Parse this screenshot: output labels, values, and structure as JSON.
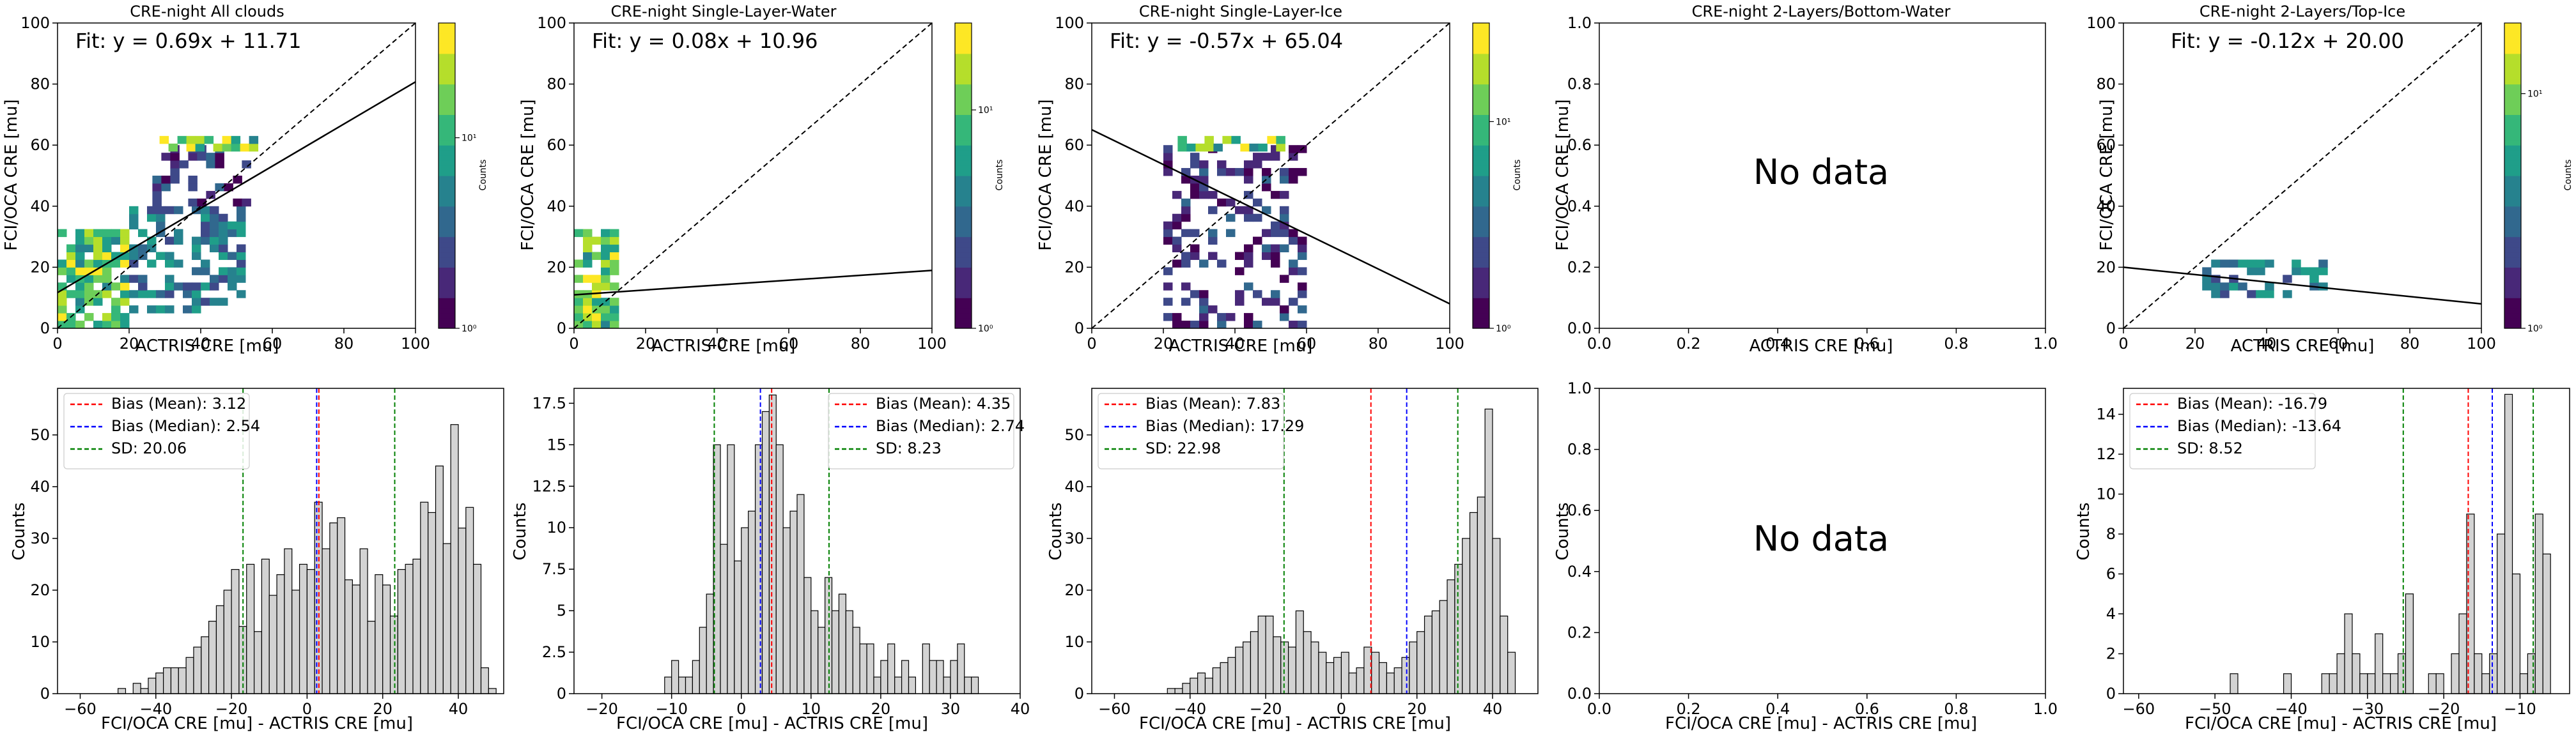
{
  "figure": {
    "panels": [
      {
        "id": "p1",
        "title": "CRE-night All clouds",
        "fit_label": "Fit: y = 0.69x + 11.71",
        "xlabel": "ACTRIS CRE [mu]",
        "ylabel": "FCI/OCA CRE [mu]",
        "colorbar_label": "Counts"
      },
      {
        "id": "p2",
        "title": "CRE-night Single-Layer-Water",
        "fit_label": "Fit: y = 0.08x + 10.96",
        "xlabel": "ACTRIS CRE [mu]",
        "ylabel": "FCI/OCA CRE [mu]",
        "colorbar_label": "Counts"
      },
      {
        "id": "p3",
        "title": "CRE-night Single-Layer-Ice",
        "fit_label": "Fit: y = -0.57x + 65.04",
        "xlabel": "ACTRIS CRE [mu]",
        "ylabel": "FCI/OCA CRE [mu]",
        "colorbar_label": "Counts"
      },
      {
        "id": "p4",
        "title": "CRE-night 2-Layers/Bottom-Water",
        "no_data_label": "No data",
        "xlabel": "ACTRIS CRE [mu]",
        "ylabel": "FCI/OCA CRE [mu]"
      },
      {
        "id": "p5",
        "title": "CRE-night 2-Layers/Top-Ice",
        "fit_label": "Fit: y = -0.12x + 20.00",
        "xlabel": "ACTRIS CRE [mu]",
        "ylabel": "FCI/OCA CRE [mu]",
        "colorbar_label": "Counts"
      },
      {
        "id": "h1",
        "xlabel": "FCI/OCA CRE [mu] - ACTRIS CRE [mu]",
        "ylabel": "Counts"
      },
      {
        "id": "h2",
        "xlabel": "FCI/OCA CRE [mu] - ACTRIS CRE [mu]",
        "ylabel": "Counts"
      },
      {
        "id": "h3",
        "xlabel": "FCI/OCA CRE [mu] - ACTRIS CRE [mu]",
        "ylabel": "Counts"
      },
      {
        "id": "h4",
        "xlabel": "FCI/OCA CRE [mu] - ACTRIS CRE [mu]",
        "ylabel": "Counts",
        "no_data_label": "No data"
      },
      {
        "id": "h5",
        "xlabel": "FCI/OCA CRE [mu] - ACTRIS CRE [mu]",
        "ylabel": "Counts"
      }
    ]
  },
  "colors": {
    "bar_fill": "#d3d3d3",
    "bar_edge": "#000000",
    "mean": "#ff0000",
    "median": "#0000ff",
    "sd": "#008000",
    "viridis": [
      "#440154",
      "#482878",
      "#3e4989",
      "#31688e",
      "#26828e",
      "#1f9e89",
      "#35b779",
      "#6ece58",
      "#b5de2b",
      "#fde725"
    ]
  },
  "chart_data": [
    {
      "type": "heatmap",
      "panel": "p1",
      "title": "CRE-night All clouds",
      "xlabel": "ACTRIS CRE [mu]",
      "ylabel": "FCI/OCA CRE [mu]",
      "xlim": [
        0,
        100
      ],
      "ylim": [
        0,
        100
      ],
      "xticks": [
        0,
        20,
        40,
        60,
        80,
        100
      ],
      "yticks": [
        0,
        20,
        40,
        60,
        80,
        100
      ],
      "fit": {
        "label": "Fit: y = 0.69x + 11.71",
        "slope": 0.69,
        "intercept": 11.71
      },
      "identity_line": true,
      "colorbar": {
        "label": "Counts",
        "scale": "log",
        "ticks": [
          {
            "value": 1,
            "label": "10⁰"
          },
          {
            "value": 10,
            "label": "10¹"
          }
        ],
        "min": 1,
        "max": 40
      },
      "cells": [
        {
          "x": [
            0,
            20
          ],
          "y": [
            0,
            32
          ],
          "density": "high"
        },
        {
          "x": [
            20,
            52
          ],
          "y": [
            5,
            40
          ],
          "density": "medium"
        },
        {
          "x": [
            24,
            54
          ],
          "y": [
            40,
            60
          ],
          "density": "low"
        },
        {
          "x": [
            26,
            54
          ],
          "y": [
            58,
            62
          ],
          "density": "high"
        }
      ]
    },
    {
      "type": "heatmap",
      "panel": "p2",
      "title": "CRE-night Single-Layer-Water",
      "xlabel": "ACTRIS CRE [mu]",
      "ylabel": "FCI/OCA CRE [mu]",
      "xlim": [
        0,
        100
      ],
      "ylim": [
        0,
        100
      ],
      "xticks": [
        0,
        20,
        40,
        60,
        80,
        100
      ],
      "yticks": [
        0,
        20,
        40,
        60,
        80,
        100
      ],
      "fit": {
        "label": "Fit: y = 0.08x + 10.96",
        "slope": 0.08,
        "intercept": 10.96
      },
      "identity_line": true,
      "colorbar": {
        "label": "Counts",
        "scale": "log",
        "ticks": [
          {
            "value": 1,
            "label": "10⁰"
          },
          {
            "value": 10,
            "label": "10¹"
          }
        ],
        "min": 1,
        "max": 25
      },
      "cells": [
        {
          "x": [
            0,
            12
          ],
          "y": [
            0,
            32
          ],
          "density": "high"
        }
      ]
    },
    {
      "type": "heatmap",
      "panel": "p3",
      "title": "CRE-night Single-Layer-Ice",
      "xlabel": "ACTRIS CRE [mu]",
      "ylabel": "FCI/OCA CRE [mu]",
      "xlim": [
        0,
        100
      ],
      "ylim": [
        0,
        100
      ],
      "xticks": [
        0,
        20,
        40,
        60,
        80,
        100
      ],
      "yticks": [
        0,
        20,
        40,
        60,
        80,
        100
      ],
      "fit": {
        "label": "Fit: y = -0.57x + 65.04",
        "slope": -0.57,
        "intercept": 65.04
      },
      "identity_line": true,
      "colorbar": {
        "label": "Counts",
        "scale": "log",
        "ticks": [
          {
            "value": 1,
            "label": "10⁰"
          },
          {
            "value": 10,
            "label": "10¹"
          }
        ],
        "min": 1,
        "max": 30
      },
      "cells": [
        {
          "x": [
            20,
            60
          ],
          "y": [
            0,
            58
          ],
          "density": "low"
        },
        {
          "x": [
            24,
            54
          ],
          "y": [
            58,
            62
          ],
          "density": "high"
        }
      ]
    },
    {
      "type": "scatter",
      "panel": "p4",
      "title": "CRE-night 2-Layers/Bottom-Water",
      "xlabel": "ACTRIS CRE [mu]",
      "ylabel": "FCI/OCA CRE [mu]",
      "xlim": [
        0,
        1
      ],
      "ylim": [
        0,
        1
      ],
      "xticks": [
        0.0,
        0.2,
        0.4,
        0.6,
        0.8,
        1.0
      ],
      "yticks": [
        0.0,
        0.2,
        0.4,
        0.6,
        0.8,
        1.0
      ],
      "annotation": "No data"
    },
    {
      "type": "heatmap",
      "panel": "p5",
      "title": "CRE-night 2-Layers/Top-Ice",
      "xlabel": "ACTRIS CRE [mu]",
      "ylabel": "FCI/OCA CRE [mu]",
      "xlim": [
        0,
        100
      ],
      "ylim": [
        0,
        100
      ],
      "xticks": [
        0,
        20,
        40,
        60,
        80,
        100
      ],
      "yticks": [
        0,
        20,
        40,
        60,
        80,
        100
      ],
      "fit": {
        "label": "Fit: y = -0.12x + 20.00",
        "slope": -0.12,
        "intercept": 20.0
      },
      "identity_line": true,
      "colorbar": {
        "label": "Counts",
        "scale": "log",
        "ticks": [
          {
            "value": 1,
            "label": "10⁰"
          },
          {
            "value": 10,
            "label": "10¹"
          }
        ],
        "min": 1,
        "max": 20
      },
      "cells": [
        {
          "x": [
            22,
            56
          ],
          "y": [
            10,
            22
          ],
          "density": "medium"
        }
      ]
    },
    {
      "type": "bar",
      "panel": "h1",
      "xlabel": "FCI/OCA CRE [mu] - ACTRIS CRE [mu]",
      "ylabel": "Counts",
      "xlim": [
        -66,
        52
      ],
      "ylim": [
        0,
        59
      ],
      "xticks": [
        -60,
        -40,
        -20,
        0,
        20,
        40
      ],
      "yticks": [
        0,
        10,
        20,
        30,
        40,
        50
      ],
      "bins": {
        "start": -50,
        "width": 2
      },
      "values": [
        1,
        0,
        2,
        1,
        3,
        4,
        5,
        5,
        5,
        7,
        9,
        11,
        14,
        17,
        20,
        24,
        13,
        25,
        12,
        26,
        19,
        23,
        28,
        20,
        25,
        24,
        37,
        28,
        33,
        34,
        22,
        21,
        28,
        14,
        23,
        21,
        15,
        24,
        25,
        26,
        37,
        35,
        44,
        29,
        52,
        32,
        36,
        25,
        5,
        1
      ],
      "legend_position": "upper left",
      "vlines": [
        {
          "name": "Bias (Mean)",
          "legend_label": "Bias (Mean): 3.12",
          "x": 3.12,
          "color": "#ff0000"
        },
        {
          "name": "Bias (Median)",
          "legend_label": "Bias (Median): 2.54",
          "x": 2.54,
          "color": "#0000ff"
        },
        {
          "name": "SD",
          "legend_label": "SD: 20.06",
          "x": [
            -16.94,
            23.18
          ],
          "color": "#008000"
        }
      ]
    },
    {
      "type": "bar",
      "panel": "h2",
      "xlabel": "FCI/OCA CRE [mu] - ACTRIS CRE [mu]",
      "ylabel": "Counts",
      "xlim": [
        -24,
        40
      ],
      "ylim": [
        0,
        18.4
      ],
      "xticks": [
        -20,
        -10,
        0,
        10,
        20,
        30,
        40
      ],
      "yticks": [
        0,
        2.5,
        5.0,
        7.5,
        10.0,
        12.5,
        15.0,
        17.5
      ],
      "bins": {
        "start": -12,
        "width": 1
      },
      "values": [
        0,
        1,
        2,
        1,
        1,
        2,
        4,
        6,
        15,
        9,
        15,
        8,
        10,
        11,
        15,
        17,
        18,
        15,
        10,
        11,
        12,
        7,
        5,
        4,
        7,
        5,
        6,
        5,
        4,
        3,
        3,
        1,
        2,
        3,
        1,
        2,
        1,
        0,
        3,
        2,
        2,
        1,
        2,
        3,
        1,
        1
      ],
      "legend_position": "upper right",
      "vlines": [
        {
          "name": "Bias (Mean)",
          "legend_label": "Bias (Mean): 4.35",
          "x": 4.35,
          "color": "#ff0000"
        },
        {
          "name": "Bias (Median)",
          "legend_label": "Bias (Median): 2.74",
          "x": 2.74,
          "color": "#0000ff"
        },
        {
          "name": "SD",
          "legend_label": "SD: 8.23",
          "x": [
            -3.88,
            12.58
          ],
          "color": "#008000"
        }
      ]
    },
    {
      "type": "bar",
      "panel": "h3",
      "xlabel": "FCI/OCA CRE [mu] - ACTRIS CRE [mu]",
      "ylabel": "Counts",
      "xlim": [
        -66,
        52
      ],
      "ylim": [
        0,
        59
      ],
      "xticks": [
        -60,
        -40,
        -20,
        0,
        20,
        40
      ],
      "yticks": [
        0,
        10,
        20,
        30,
        40,
        50
      ],
      "bins": {
        "start": -46,
        "width": 2
      },
      "values": [
        1,
        1,
        2,
        3,
        4,
        3,
        5,
        6,
        7,
        9,
        10,
        12,
        15,
        15,
        11,
        10,
        9,
        16,
        12,
        10,
        8,
        6,
        7,
        8,
        4,
        5,
        9,
        8,
        6,
        4,
        5,
        7,
        10,
        12,
        15,
        16,
        18,
        22,
        25,
        30,
        35,
        38,
        55,
        30,
        15,
        8
      ],
      "legend_position": "upper left",
      "vlines": [
        {
          "name": "Bias (Mean)",
          "legend_label": "Bias (Mean): 7.83",
          "x": 7.83,
          "color": "#ff0000"
        },
        {
          "name": "Bias (Median)",
          "legend_label": "Bias (Median): 17.29",
          "x": 17.29,
          "color": "#0000ff"
        },
        {
          "name": "SD",
          "legend_label": "SD: 22.98",
          "x": [
            -15.15,
            30.81
          ],
          "color": "#008000"
        }
      ]
    },
    {
      "type": "bar",
      "panel": "h4",
      "xlabel": "FCI/OCA CRE [mu] - ACTRIS CRE [mu]",
      "ylabel": "Counts",
      "xlim": [
        0,
        1
      ],
      "ylim": [
        0,
        1
      ],
      "xticks": [
        0.0,
        0.2,
        0.4,
        0.6,
        0.8,
        1.0
      ],
      "yticks": [
        0.0,
        0.2,
        0.4,
        0.6,
        0.8,
        1.0
      ],
      "values": [],
      "annotation": "No data"
    },
    {
      "type": "bar",
      "panel": "h5",
      "xlabel": "FCI/OCA CRE [mu] - ACTRIS CRE [mu]",
      "ylabel": "Counts",
      "xlim": [
        -62,
        -3.5
      ],
      "ylim": [
        0,
        15.3
      ],
      "xticks": [
        -60,
        -50,
        -40,
        -30,
        -20,
        -10
      ],
      "yticks": [
        0,
        2,
        4,
        6,
        8,
        10,
        12,
        14
      ],
      "bins": {
        "start": -48,
        "width": 1
      },
      "values": [
        1,
        0,
        0,
        0,
        0,
        0,
        0,
        1,
        0,
        0,
        0,
        0,
        1,
        1,
        2,
        4,
        2,
        1,
        1,
        3,
        1,
        1,
        2,
        5,
        0,
        0,
        1,
        1,
        0,
        2,
        4,
        9,
        2,
        1,
        2,
        8,
        15,
        6,
        1,
        2,
        9,
        7
      ],
      "legend_position": "upper left",
      "vlines": [
        {
          "name": "Bias (Mean)",
          "legend_label": "Bias (Mean): -16.79",
          "x": -16.79,
          "color": "#ff0000"
        },
        {
          "name": "Bias (Median)",
          "legend_label": "Bias (Median): -13.64",
          "x": -13.64,
          "color": "#0000ff"
        },
        {
          "name": "SD",
          "legend_label": "SD: 8.52",
          "x": [
            -25.31,
            -8.27
          ],
          "color": "#008000"
        }
      ]
    }
  ]
}
